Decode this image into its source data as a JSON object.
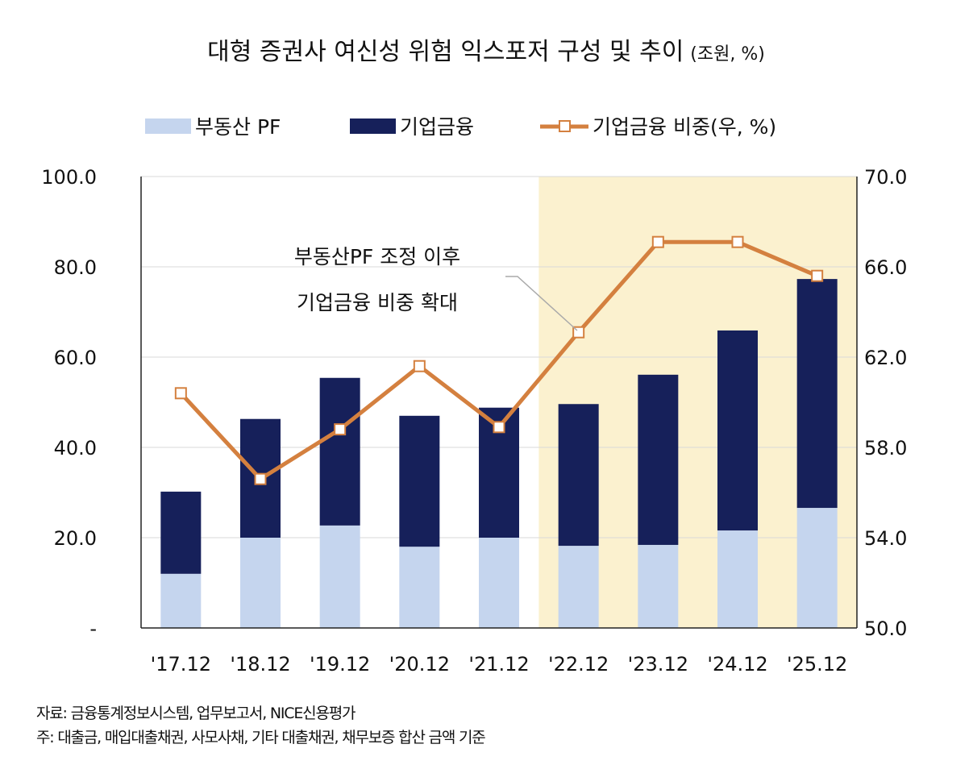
{
  "chart_data": {
    "type": "bar",
    "stacked": true,
    "title": "대형 증권사 여신성 위험 익스포저 구성 및 추이",
    "title_unit": "(조원, %)",
    "categories": [
      "'17.12",
      "'18.12",
      "'19.12",
      "'20.12",
      "'21.12",
      "'22.12",
      "'23.12",
      "'24.12",
      "'25.12"
    ],
    "series": [
      {
        "name": "부동산 PF",
        "kind": "bar",
        "axis": "left",
        "color": "#c5d5ee",
        "values": [
          12.0,
          20.0,
          22.7,
          18.0,
          20.0,
          18.2,
          18.4,
          21.6,
          26.6
        ]
      },
      {
        "name": "기업금융",
        "kind": "bar",
        "axis": "left",
        "color": "#16205a",
        "values": [
          18.2,
          26.3,
          32.7,
          29.0,
          28.8,
          31.4,
          37.7,
          44.3,
          50.7
        ]
      },
      {
        "name": "기업금융 비중(우, %)",
        "kind": "line",
        "axis": "right",
        "color": "#d4803f",
        "marker": "hollow-square",
        "values": [
          60.4,
          56.6,
          58.8,
          61.6,
          58.9,
          63.1,
          67.1,
          67.1,
          65.6
        ]
      }
    ],
    "y_left": {
      "range": [
        0,
        100
      ],
      "ticks": [
        "-",
        "20.0",
        "40.0",
        "60.0",
        "80.0",
        "100.0"
      ],
      "tick_values": [
        0,
        20,
        40,
        60,
        80,
        100
      ]
    },
    "y_right": {
      "range": [
        50,
        70
      ],
      "ticks": [
        "50.0",
        "54.0",
        "58.0",
        "62.0",
        "66.0",
        "70.0"
      ],
      "tick_values": [
        50,
        54,
        58,
        62,
        66,
        70
      ]
    },
    "grid": true,
    "legend_placement": "top",
    "highlight": {
      "from_category": "'22.12",
      "to_category": "'25.12",
      "color": "#fbf1cf"
    },
    "annotation": {
      "lines": [
        "부동산PF 조정 이후",
        "기업금융 비중 확대"
      ],
      "points_to": "'22.12"
    },
    "notes": [
      "자료: 금융통계정보시스템, 업무보고서, NICE신용평가",
      "주: 대출금, 매입대출채권, 사모사채, 기타 대출채권, 채무보증 합산 금액 기준"
    ]
  }
}
